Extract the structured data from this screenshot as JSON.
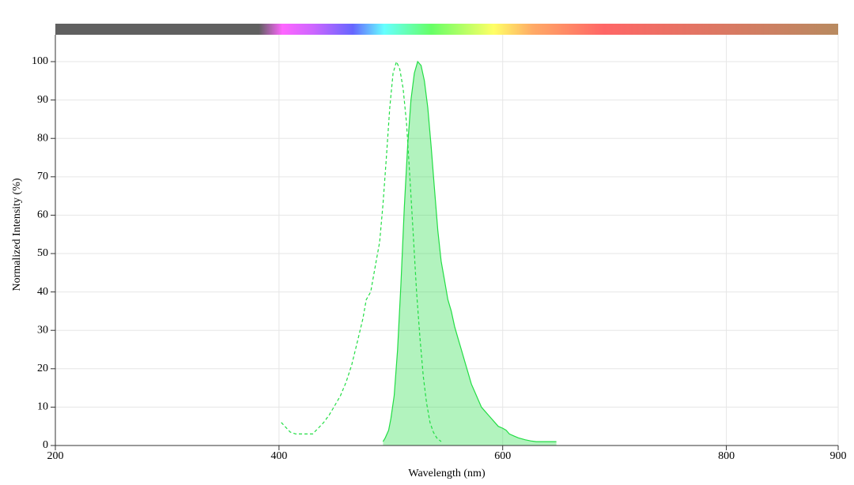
{
  "chart_data": {
    "type": "line",
    "x_label": "Wavelength (nm)",
    "y_label": "Normalized Intensity (%)",
    "xlim": [
      200,
      900
    ],
    "xticks": [
      200,
      400,
      600,
      800,
      900
    ],
    "ylim": [
      0,
      107
    ],
    "yticks": [
      0,
      10,
      20,
      30,
      40,
      50,
      60,
      70,
      80,
      90,
      100
    ],
    "grid": true,
    "series": [
      {
        "color": "#22dd44",
        "dashed": true,
        "filled": false,
        "x": [
          402,
          410,
          415,
          420,
          425,
          430,
          435,
          440,
          445,
          450,
          455,
          460,
          465,
          470,
          475,
          478,
          482,
          485,
          490,
          493,
          496,
          499,
          502,
          505,
          508,
          511,
          514,
          517,
          520,
          523,
          526,
          529,
          532,
          535,
          538,
          541,
          545
        ],
        "values": [
          6,
          3.5,
          3,
          3,
          3,
          3,
          4.5,
          6,
          8,
          10.5,
          13,
          16.5,
          21,
          27,
          33,
          38,
          40,
          45,
          53,
          63,
          75,
          88,
          97,
          100,
          98,
          93,
          84,
          70,
          55,
          40,
          28,
          18,
          11,
          6,
          3.5,
          2,
          1
        ]
      },
      {
        "color": "#22dd44",
        "dashed": false,
        "filled": true,
        "x": [
          493,
          495,
          498,
          500,
          503,
          506,
          509,
          512,
          515,
          518,
          521,
          524,
          527,
          530,
          533,
          536,
          539,
          542,
          545,
          548,
          551,
          554,
          557,
          560,
          563,
          566,
          569,
          572,
          575,
          578,
          581,
          584,
          587,
          590,
          593,
          596,
          600,
          603,
          606,
          610,
          614,
          620,
          625,
          630,
          640,
          648
        ],
        "values": [
          1,
          2,
          4,
          7,
          13,
          25,
          42,
          62,
          78,
          90,
          97,
          100,
          99,
          95,
          88,
          78,
          67,
          56,
          48,
          43,
          38,
          35,
          31,
          28,
          25,
          22,
          19,
          16,
          14,
          12,
          10,
          9,
          8,
          7,
          6,
          5,
          4.5,
          4,
          3,
          2.5,
          2,
          1.5,
          1.2,
          1,
          1,
          1
        ]
      }
    ]
  }
}
